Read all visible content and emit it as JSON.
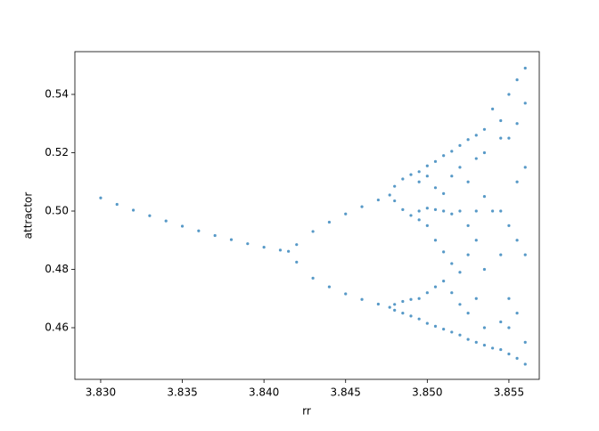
{
  "chart_data": {
    "type": "scatter",
    "xlabel": "rr",
    "ylabel": "attractor",
    "color": "#1f77b4",
    "xlim": [
      3.82842,
      3.85686
    ],
    "ylim": [
      0.44229,
      0.55466
    ],
    "xticks": [
      {
        "value": 3.83,
        "label": "3.830"
      },
      3.835,
      {
        "value": 3.84,
        "label": "3.840"
      },
      3.845,
      {
        "value": 3.85,
        "label": "3.850"
      },
      3.855
    ],
    "yticks": [
      0.46,
      0.48,
      {
        "value": 0.5,
        "label": "0.50"
      },
      0.52,
      0.54
    ],
    "x": [
      3.83,
      3.831,
      3.832,
      3.833,
      3.834,
      3.835,
      3.836,
      3.837,
      3.838,
      3.839,
      3.84,
      3.841,
      3.8415,
      3.842,
      3.842,
      3.843,
      3.843,
      3.844,
      3.844,
      3.845,
      3.845,
      3.846,
      3.846,
      3.847,
      3.847,
      3.8477,
      3.8477,
      3.848,
      3.848,
      3.848,
      3.848,
      3.8485,
      3.8485,
      3.8485,
      3.8485,
      3.849,
      3.849,
      3.849,
      3.849,
      3.8495,
      3.8495,
      3.8495,
      3.8495,
      3.8495,
      3.8495,
      3.85,
      3.85,
      3.85,
      3.85,
      3.85,
      3.85,
      3.8505,
      3.8505,
      3.8505,
      3.8505,
      3.8505,
      3.8505,
      3.851,
      3.851,
      3.851,
      3.851,
      3.851,
      3.851,
      3.8515,
      3.8515,
      3.8515,
      3.8515,
      3.8515,
      3.8515,
      3.852,
      3.852,
      3.852,
      3.852,
      3.852,
      3.852,
      3.8525,
      3.8525,
      3.8525,
      3.8525,
      3.8525,
      3.8525,
      3.853,
      3.853,
      3.853,
      3.853,
      3.853,
      3.853,
      3.8535,
      3.8535,
      3.8535,
      3.8535,
      3.8535,
      3.8535,
      3.854,
      3.854,
      3.854,
      3.8545,
      3.8545,
      3.8545,
      3.8545,
      3.8545,
      3.8545,
      3.855,
      3.855,
      3.855,
      3.855,
      3.855,
      3.855,
      3.8555,
      3.8555,
      3.8555,
      3.8555,
      3.8555,
      3.8555,
      3.856,
      3.856,
      3.856,
      3.856,
      3.856,
      3.856
    ],
    "values": [
      0.5045,
      0.5023,
      0.5003,
      0.4984,
      0.4966,
      0.4948,
      0.4932,
      0.4916,
      0.4902,
      0.4888,
      0.4876,
      0.4866,
      0.4862,
      0.4885,
      0.4825,
      0.493,
      0.477,
      0.4962,
      0.474,
      0.499,
      0.4716,
      0.5015,
      0.4697,
      0.5038,
      0.4681,
      0.5055,
      0.467,
      0.5085,
      0.5035,
      0.468,
      0.466,
      0.511,
      0.5005,
      0.469,
      0.465,
      0.5125,
      0.4985,
      0.4697,
      0.464,
      0.5135,
      0.51,
      0.5,
      0.497,
      0.47,
      0.463,
      0.5155,
      0.512,
      0.501,
      0.495,
      0.472,
      0.4615,
      0.517,
      0.508,
      0.5005,
      0.49,
      0.474,
      0.4605,
      0.519,
      0.506,
      0.5,
      0.486,
      0.476,
      0.4595,
      0.5205,
      0.512,
      0.499,
      0.482,
      0.472,
      0.4585,
      0.5225,
      0.515,
      0.5,
      0.479,
      0.468,
      0.4575,
      0.5245,
      0.51,
      0.495,
      0.485,
      0.465,
      0.456,
      0.526,
      0.518,
      0.5,
      0.49,
      0.47,
      0.455,
      0.528,
      0.52,
      0.505,
      0.48,
      0.46,
      0.454,
      0.535,
      0.5,
      0.453,
      0.531,
      0.525,
      0.5,
      0.485,
      0.462,
      0.4525,
      0.54,
      0.525,
      0.495,
      0.47,
      0.46,
      0.451,
      0.545,
      0.53,
      0.51,
      0.49,
      0.465,
      0.4495,
      0.549,
      0.537,
      0.515,
      0.485,
      0.455,
      0.4475
    ]
  }
}
